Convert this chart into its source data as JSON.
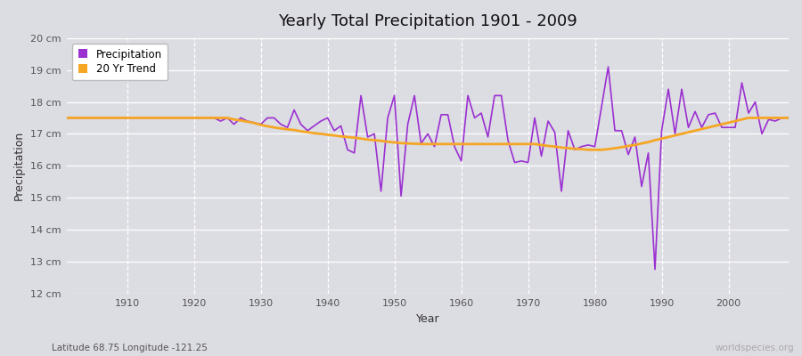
{
  "title": "Yearly Total Precipitation 1901 - 2009",
  "xlabel": "Year",
  "ylabel": "Precipitation",
  "subtitle": "Latitude 68.75 Longitude -121.25",
  "watermark": "worldspecies.org",
  "ylim": [
    12,
    20
  ],
  "yticks": [
    12,
    13,
    14,
    15,
    16,
    17,
    18,
    19,
    20
  ],
  "ytick_labels": [
    "12 cm",
    "13 cm",
    "14 cm",
    "15 cm",
    "16 cm",
    "17 cm",
    "18 cm",
    "19 cm",
    "20 cm"
  ],
  "xlim": [
    1901,
    2009
  ],
  "xticks": [
    1910,
    1920,
    1930,
    1940,
    1950,
    1960,
    1970,
    1980,
    1990,
    2000
  ],
  "precip_color": "#9b30d0",
  "trend_color": "#f5a623",
  "plot_bg_color": "#dcdce3",
  "fig_bg_color": "#dcdce3",
  "years": [
    1901,
    1902,
    1903,
    1904,
    1905,
    1906,
    1907,
    1908,
    1909,
    1910,
    1911,
    1912,
    1913,
    1914,
    1915,
    1916,
    1917,
    1918,
    1919,
    1920,
    1921,
    1922,
    1923,
    1924,
    1925,
    1926,
    1927,
    1928,
    1929,
    1930,
    1931,
    1932,
    1933,
    1934,
    1935,
    1936,
    1937,
    1938,
    1939,
    1940,
    1941,
    1942,
    1943,
    1944,
    1945,
    1946,
    1947,
    1948,
    1949,
    1950,
    1951,
    1952,
    1953,
    1954,
    1955,
    1956,
    1957,
    1958,
    1959,
    1960,
    1961,
    1962,
    1963,
    1964,
    1965,
    1966,
    1967,
    1968,
    1969,
    1970,
    1971,
    1972,
    1973,
    1974,
    1975,
    1976,
    1977,
    1978,
    1979,
    1980,
    1981,
    1982,
    1983,
    1984,
    1985,
    1986,
    1987,
    1988,
    1989,
    1990,
    1991,
    1992,
    1993,
    1994,
    1995,
    1996,
    1997,
    1998,
    1999,
    2000,
    2001,
    2002,
    2003,
    2004,
    2005,
    2006,
    2007,
    2008,
    2009
  ],
  "precipitation": [
    17.5,
    17.5,
    17.5,
    17.5,
    17.5,
    17.5,
    17.5,
    17.5,
    17.5,
    17.5,
    17.5,
    17.5,
    17.5,
    17.5,
    17.5,
    17.5,
    17.5,
    17.5,
    17.5,
    17.5,
    17.5,
    17.5,
    17.5,
    17.4,
    17.5,
    17.3,
    17.5,
    17.4,
    17.35,
    17.3,
    17.5,
    17.5,
    17.3,
    17.2,
    17.75,
    17.3,
    17.1,
    17.25,
    17.4,
    17.5,
    17.1,
    17.25,
    16.5,
    16.4,
    18.2,
    16.9,
    17.0,
    15.2,
    17.5,
    18.2,
    15.05,
    17.3,
    18.2,
    16.7,
    17.0,
    16.6,
    17.6,
    17.6,
    16.6,
    16.15,
    18.2,
    17.5,
    17.65,
    16.9,
    18.2,
    18.2,
    16.8,
    16.1,
    16.15,
    16.1,
    17.5,
    16.3,
    17.4,
    17.05,
    15.2,
    17.1,
    16.5,
    16.6,
    16.65,
    16.6,
    17.85,
    19.1,
    17.1,
    17.1,
    16.35,
    16.9,
    15.35,
    16.4,
    12.75,
    17.1,
    18.4,
    17.0,
    18.4,
    17.2,
    17.7,
    17.2,
    17.6,
    17.65,
    17.2,
    17.2,
    17.2,
    18.6,
    17.65,
    18.0,
    17.0,
    17.45,
    17.4,
    17.5,
    17.5
  ],
  "trend": [
    17.5,
    17.5,
    17.5,
    17.5,
    17.5,
    17.5,
    17.5,
    17.5,
    17.5,
    17.5,
    17.5,
    17.5,
    17.5,
    17.5,
    17.5,
    17.5,
    17.5,
    17.5,
    17.5,
    17.5,
    17.5,
    17.5,
    17.5,
    17.5,
    17.5,
    17.45,
    17.42,
    17.38,
    17.34,
    17.28,
    17.24,
    17.2,
    17.17,
    17.14,
    17.12,
    17.08,
    17.05,
    17.02,
    17.0,
    16.97,
    16.95,
    16.92,
    16.9,
    16.88,
    16.85,
    16.82,
    16.8,
    16.78,
    16.75,
    16.73,
    16.71,
    16.7,
    16.69,
    16.68,
    16.68,
    16.68,
    16.68,
    16.68,
    16.68,
    16.68,
    16.68,
    16.68,
    16.68,
    16.68,
    16.68,
    16.68,
    16.68,
    16.68,
    16.68,
    16.68,
    16.68,
    16.65,
    16.62,
    16.6,
    16.57,
    16.55,
    16.53,
    16.52,
    16.5,
    16.5,
    16.5,
    16.52,
    16.55,
    16.58,
    16.62,
    16.65,
    16.7,
    16.74,
    16.8,
    16.85,
    16.9,
    16.95,
    17.0,
    17.05,
    17.1,
    17.15,
    17.2,
    17.25,
    17.3,
    17.35,
    17.4,
    17.45,
    17.5,
    17.5,
    17.5,
    17.5,
    17.5,
    17.5,
    17.5
  ]
}
